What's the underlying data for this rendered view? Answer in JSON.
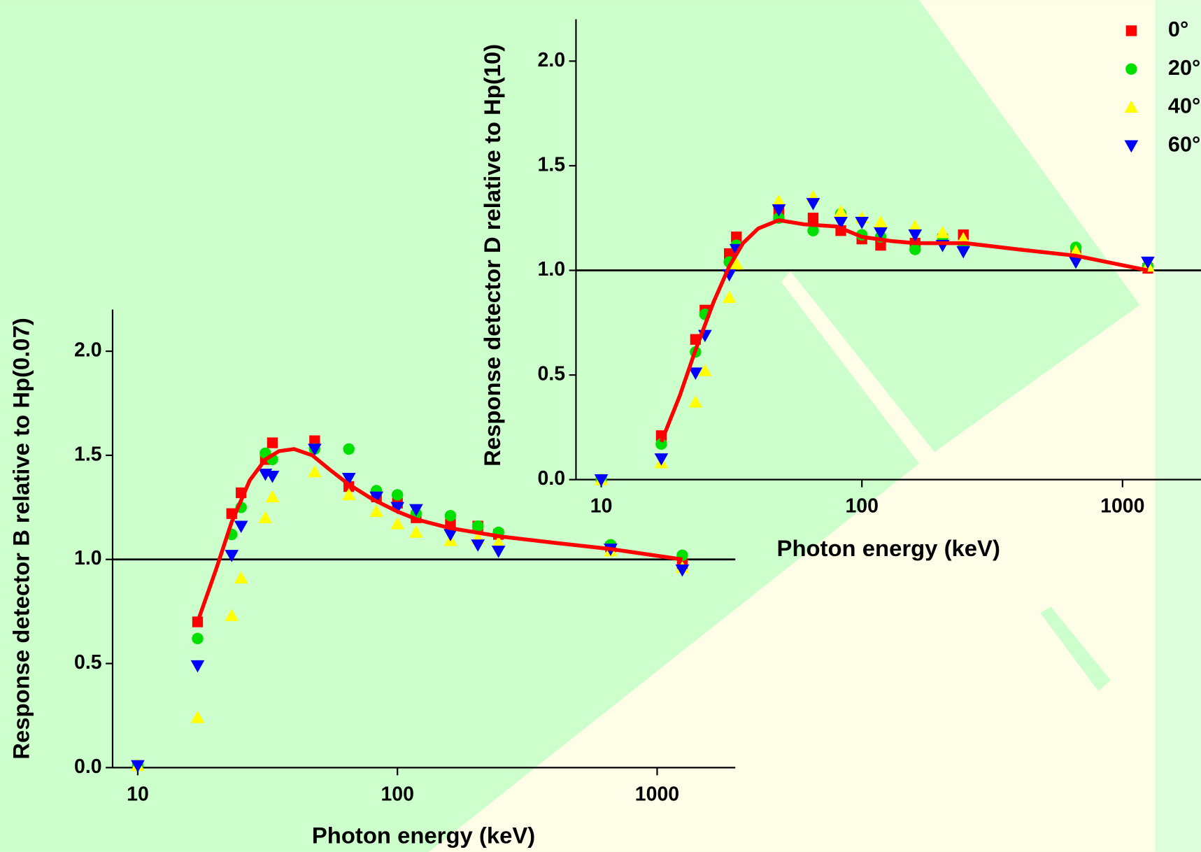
{
  "chart_data": [
    {
      "type": "scatter",
      "x_label": "Photon energy (keV)",
      "y_label": "Response detector B relative to Hp(0.07)",
      "x_log": true,
      "xlim": [
        8,
        2000
      ],
      "ylim": [
        0,
        2.2
      ],
      "xticks": [
        10,
        100,
        1000
      ],
      "yticks": [
        {
          "value": 0,
          "label": "0.0"
        },
        0.5,
        {
          "value": 1,
          "label": "1.0"
        },
        1.5,
        {
          "value": 2,
          "label": "2.0"
        }
      ],
      "reference_line": 1,
      "x": [
        10,
        17,
        23,
        25,
        31,
        33,
        48,
        65,
        83,
        100,
        118,
        160,
        204,
        245,
        662,
        1250
      ],
      "series": [
        {
          "name": "0°",
          "color": "#ff0000",
          "marker": "square",
          "values": [
            0.01,
            0.7,
            1.22,
            1.32,
            1.48,
            1.56,
            1.57,
            1.35,
            1.3,
            1.27,
            1.2,
            1.17,
            1.16,
            1.12,
            1.06,
            0.98
          ]
        },
        {
          "name": "20°",
          "color": "#00e000",
          "marker": "circle",
          "values": [
            0.01,
            0.62,
            1.12,
            1.25,
            1.51,
            1.48,
            1.53,
            1.53,
            1.33,
            1.31,
            1.22,
            1.21,
            1.16,
            1.13,
            1.07,
            1.02
          ]
        },
        {
          "name": "40°",
          "color": "#ffff00",
          "marker": "triangle-up",
          "values": [
            0.01,
            0.24,
            0.73,
            0.91,
            1.2,
            1.3,
            1.42,
            1.31,
            1.23,
            1.17,
            1.13,
            1.09,
            1.1,
            1.08,
            1.04,
            0.96
          ]
        },
        {
          "name": "60°",
          "color": "#0000ff",
          "marker": "triangle-down",
          "values": [
            0.01,
            0.49,
            1.02,
            1.16,
            1.41,
            1.4,
            1.53,
            1.39,
            1.3,
            1.25,
            1.24,
            1.12,
            1.07,
            1.04,
            1.05,
            0.95
          ]
        }
      ],
      "fit": {
        "color": "#ff0000",
        "x": [
          17,
          20,
          23,
          27,
          31,
          35,
          40,
          47,
          55,
          65,
          80,
          100,
          120,
          160,
          250,
          400,
          662,
          1250
        ],
        "values": [
          0.7,
          0.95,
          1.18,
          1.38,
          1.48,
          1.52,
          1.53,
          1.5,
          1.43,
          1.36,
          1.29,
          1.23,
          1.19,
          1.15,
          1.11,
          1.08,
          1.05,
          1.0
        ]
      }
    },
    {
      "type": "scatter",
      "x_label": "Photon energy (keV)",
      "y_label": "Response detector D relative to Hp(10)",
      "x_log": true,
      "xlim": [
        8,
        2000
      ],
      "ylim": [
        0,
        2.2
      ],
      "xticks": [
        10,
        100,
        1000
      ],
      "yticks": [
        {
          "value": 0,
          "label": "0.0"
        },
        0.5,
        {
          "value": 1,
          "label": "1.0"
        },
        1.5,
        {
          "value": 2,
          "label": "2.0"
        }
      ],
      "reference_line": 1,
      "x": [
        10,
        17,
        23,
        25,
        31,
        33,
        48,
        65,
        83,
        100,
        118,
        160,
        204,
        245,
        662,
        1250
      ],
      "series": [
        {
          "color": "#ff0000",
          "marker": "square",
          "values": [
            0.0,
            0.21,
            0.67,
            0.81,
            1.08,
            1.16,
            1.28,
            1.25,
            1.19,
            1.15,
            1.12,
            1.13,
            1.15,
            1.17,
            1.08,
            1.01
          ]
        },
        {
          "color": "#00e000",
          "marker": "circle",
          "values": [
            0.0,
            0.17,
            0.61,
            0.79,
            1.04,
            1.12,
            1.25,
            1.19,
            1.27,
            1.17,
            1.16,
            1.1,
            1.16,
            1.12,
            1.11,
            1.02
          ]
        },
        {
          "color": "#ffff00",
          "marker": "triangle-up",
          "values": [
            0.0,
            0.08,
            0.37,
            0.52,
            0.87,
            1.03,
            1.33,
            1.35,
            1.28,
            1.25,
            1.23,
            1.21,
            1.18,
            1.15,
            1.09,
            1.02
          ]
        },
        {
          "color": "#0000ff",
          "marker": "triangle-down",
          "values": [
            0.0,
            0.1,
            0.51,
            0.69,
            0.98,
            1.1,
            1.29,
            1.32,
            1.23,
            1.23,
            1.18,
            1.17,
            1.12,
            1.09,
            1.04,
            1.04
          ]
        }
      ],
      "fit": {
        "color": "#ff0000",
        "x": [
          17,
          20,
          23,
          27,
          31,
          35,
          40,
          48,
          60,
          80,
          100,
          130,
          160,
          250,
          400,
          662,
          1250
        ],
        "values": [
          0.18,
          0.4,
          0.62,
          0.85,
          1.02,
          1.13,
          1.2,
          1.24,
          1.22,
          1.21,
          1.16,
          1.14,
          1.13,
          1.13,
          1.1,
          1.07,
          1.0
        ]
      }
    }
  ]
}
